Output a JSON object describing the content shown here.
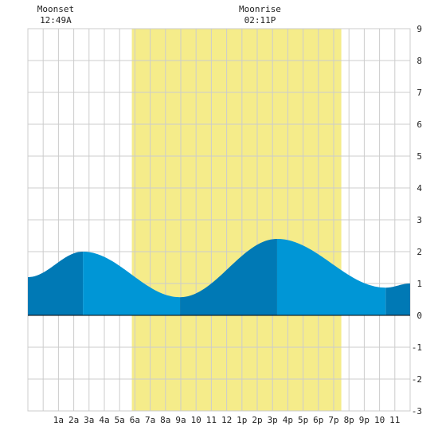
{
  "chart_data": {
    "type": "area",
    "title": "",
    "xlabel": "",
    "ylabel": "",
    "x_range_hours": [
      -1,
      24
    ],
    "ylim": [
      -3,
      9
    ],
    "y_ticks": [
      -3,
      -2,
      -1,
      0,
      1,
      2,
      3,
      4,
      5,
      6,
      7,
      8,
      9
    ],
    "x_ticks": [
      {
        "hour": 1,
        "label": "1a"
      },
      {
        "hour": 2,
        "label": "2a"
      },
      {
        "hour": 3,
        "label": "3a"
      },
      {
        "hour": 4,
        "label": "4a"
      },
      {
        "hour": 5,
        "label": "5a"
      },
      {
        "hour": 6,
        "label": "6a"
      },
      {
        "hour": 7,
        "label": "7a"
      },
      {
        "hour": 8,
        "label": "8a"
      },
      {
        "hour": 9,
        "label": "9a"
      },
      {
        "hour": 10,
        "label": "10"
      },
      {
        "hour": 11,
        "label": "11"
      },
      {
        "hour": 12,
        "label": "12"
      },
      {
        "hour": 13,
        "label": "1p"
      },
      {
        "hour": 14,
        "label": "2p"
      },
      {
        "hour": 15,
        "label": "3p"
      },
      {
        "hour": 16,
        "label": "4p"
      },
      {
        "hour": 17,
        "label": "5p"
      },
      {
        "hour": 18,
        "label": "6p"
      },
      {
        "hour": 19,
        "label": "7p"
      },
      {
        "hour": 20,
        "label": "8p"
      },
      {
        "hour": 21,
        "label": "9p"
      },
      {
        "hour": 22,
        "label": "10"
      },
      {
        "hour": 23,
        "label": "11"
      }
    ],
    "daylight": {
      "start_hour": 5.8,
      "end_hour": 19.5
    },
    "tide_extremes": [
      {
        "hour": -1.0,
        "height": 1.2
      },
      {
        "hour": 2.6,
        "height": 2.0
      },
      {
        "hour": 8.95,
        "height": 0.57
      },
      {
        "hour": 15.3,
        "height": 2.4
      },
      {
        "hour": 22.4,
        "height": 0.87
      },
      {
        "hour": 24.0,
        "height": 1.0
      }
    ],
    "segments": [
      {
        "start_hour": -1.0,
        "end_hour": 2.6,
        "shade": "dark"
      },
      {
        "start_hour": 2.6,
        "end_hour": 8.95,
        "shade": "light"
      },
      {
        "start_hour": 8.95,
        "end_hour": 15.3,
        "shade": "dark"
      },
      {
        "start_hour": 15.3,
        "end_hour": 22.4,
        "shade": "light"
      },
      {
        "start_hour": 22.4,
        "end_hour": 24.0,
        "shade": "dark"
      }
    ],
    "annotations": [
      {
        "title": "Moonset",
        "time": "12:49A",
        "hour": 0.82
      },
      {
        "title": "Moonrise",
        "time": "02:11P",
        "hour": 14.18
      }
    ],
    "grid": true,
    "colors": {
      "background": "#ffffff",
      "grid": "#cccccc",
      "daylight": "#f5ec8a",
      "water_light": "#0096d6",
      "water_dark": "#0079b5",
      "zero_line": "#000000"
    }
  }
}
